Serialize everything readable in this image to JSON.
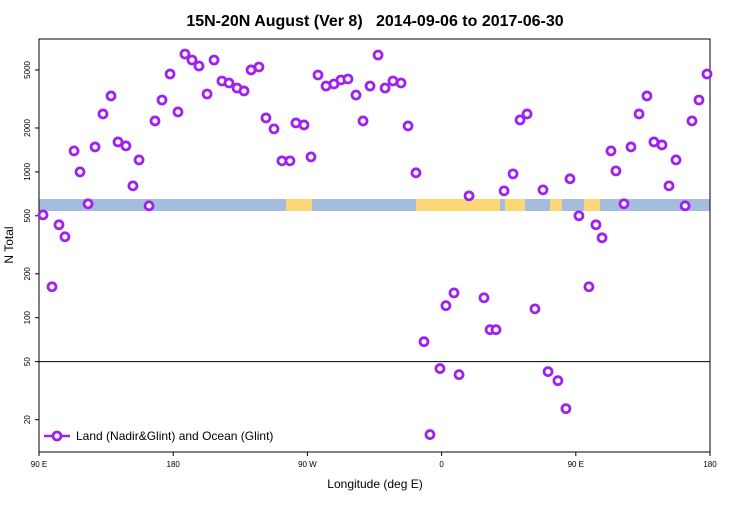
{
  "chart_data": {
    "type": "scatter",
    "title": "15N-20N August (Ver 8)   2014-09-06 to 2017-06-30",
    "xlabel": "Longitude (deg E)",
    "ylabel": "N Total",
    "x": [
      92.7,
      98.7,
      103.4,
      107.4,
      113.5,
      117.5,
      122.9,
      127.6,
      132.9,
      138.3,
      143,
      148.3,
      153,
      157.1,
      163.8,
      167.8,
      172.5,
      177.9,
      183.2,
      187.9,
      192.6,
      197.3,
      202.7,
      207.4,
      212.7,
      217.4,
      222.8,
      227.5,
      232.2,
      237.5,
      242.2,
      247.6,
      252.9,
      258.3,
      262.3,
      267.7,
      272.4,
      277.1,
      282.5,
      287.8,
      292.5,
      297.2,
      302.6,
      307.3,
      312,
      317.4,
      322.1,
      327.4,
      332.8,
      337.5,
      342.8,
      348.2,
      352.2,
      358.9,
      362.9,
      368.3,
      371.7,
      378.4,
      388.4,
      392.5,
      396.5,
      401.9,
      407.9,
      412.6,
      417.3,
      422.6,
      428,
      431.4,
      438,
      443.4,
      446.1,
      452.1,
      458.8,
      463.5,
      467.6,
      473.6,
      476.9,
      482.3,
      487,
      492.4,
      497.7,
      502.4,
      507.8,
      512.5,
      517.2,
      523.3,
      527.9,
      532.6,
      538
    ],
    "series": [
      {
        "name": "Land (Nadir&Glint) and Ocean (Glint)",
        "color": "#a020f0",
        "values": [
          507,
          163,
          434,
          359,
          1393,
          1000,
          604,
          1483,
          2496,
          3316,
          1604,
          1507,
          802,
          1208,
          585,
          2235,
          3111,
          4690,
          2576,
          6430,
          5850,
          5320,
          3420,
          5850,
          4200,
          4070,
          3760,
          3590,
          5000,
          5240,
          2344,
          1971,
          1190,
          1190,
          2166,
          2098,
          1267,
          4617,
          3880,
          4006,
          4267,
          4335,
          3366,
          2235,
          3880,
          6330,
          3760,
          4200,
          4070,
          2066,
          985,
          68.5,
          15.8,
          44.8,
          121,
          148,
          40.7,
          685,
          137,
          82.8,
          82.8,
          741,
          969,
          2270,
          2496,
          115,
          753,
          42.7,
          37,
          23.8,
          896,
          500,
          163,
          434,
          353,
          1393,
          1016,
          604,
          1483,
          2496,
          3316,
          1604,
          1530,
          802,
          1208,
          585,
          2235,
          3111,
          4690
        ]
      }
    ],
    "xlim": [
      90,
      540
    ],
    "xticks": [
      {
        "value": 90,
        "label": "90 E"
      },
      {
        "value": 180,
        "label": "180"
      },
      {
        "value": 270,
        "label": "90 W"
      },
      {
        "value": 360,
        "label": "0"
      },
      {
        "value": 450,
        "label": "90 E"
      },
      {
        "value": 540,
        "label": "180"
      }
    ],
    "ylim": [
      12,
      8150
    ],
    "log_y": true,
    "yticks": [
      20,
      50,
      100,
      200,
      500,
      1000,
      2000,
      5000
    ],
    "hline": 50,
    "legend": "lower left"
  }
}
